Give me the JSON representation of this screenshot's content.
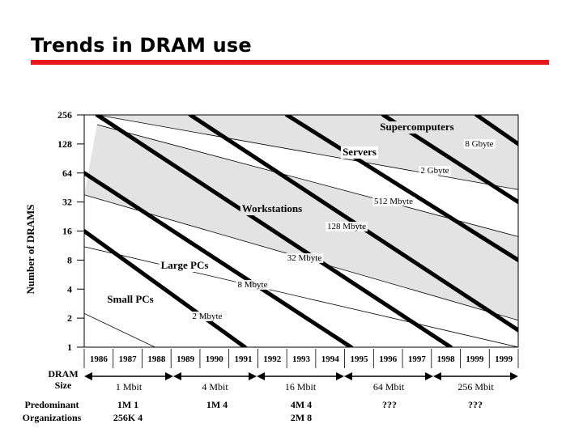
{
  "slide": {
    "title": "Trends in DRAM use"
  },
  "chart_data": {
    "type": "line",
    "ylabel": "Number of DRAMS",
    "y_scale": "log2",
    "y_ticks": [
      "256",
      "128",
      "64",
      "32",
      "16",
      "8",
      "4",
      "2",
      "1"
    ],
    "x_categories": [
      "1986",
      "1987",
      "1988",
      "1989",
      "1990",
      "1991",
      "1992",
      "1993",
      "1994",
      "1995",
      "1996",
      "1997",
      "1998",
      "1999",
      "1999"
    ],
    "memory_lines": [
      {
        "label": "2 Mbyte",
        "points": [
          [
            1986,
            16
          ],
          [
            1991,
            1
          ]
        ]
      },
      {
        "label": "8 Mbyte",
        "points": [
          [
            1986,
            64
          ],
          [
            1994.3,
            1
          ]
        ]
      },
      {
        "label": "32 Mbyte",
        "points": [
          [
            1986.4,
            256
          ],
          [
            1997.4,
            1
          ]
        ]
      },
      {
        "label": "128 Mbyte",
        "points": [
          [
            1989.3,
            256
          ],
          [
            1999.5,
            1.5
          ]
        ]
      },
      {
        "label": "512 Mbyte",
        "points": [
          [
            1992.3,
            256
          ],
          [
            1999.5,
            8
          ]
        ]
      },
      {
        "label": "2 Gbyte",
        "points": [
          [
            1995.3,
            256
          ],
          [
            1999.5,
            32
          ]
        ]
      },
      {
        "label": "8 Gbyte",
        "points": [
          [
            1998.2,
            256
          ],
          [
            1999.5,
            128
          ]
        ]
      }
    ],
    "market_bands": [
      {
        "label": "Supercomputers",
        "upper": [
          [
            1986.4,
            256
          ],
          [
            1999.5,
            256
          ]
        ],
        "lower": [
          [
            1986.4,
            256
          ],
          [
            1999.5,
            43
          ]
        ]
      },
      {
        "label": "Servers",
        "upper": [
          [
            1986.4,
            256
          ],
          [
            1999.5,
            43
          ]
        ],
        "lower": [
          [
            1986.4,
            203
          ],
          [
            1999.5,
            14
          ]
        ]
      },
      {
        "label": "Workstations",
        "upper": [
          [
            1986.4,
            203
          ],
          [
            1999.5,
            14
          ]
        ],
        "lower": [
          [
            1986,
            38
          ],
          [
            1999.5,
            1.9
          ]
        ]
      },
      {
        "label": "Large PCs",
        "upper": [
          [
            1986,
            38
          ],
          [
            1999.5,
            1.9
          ]
        ],
        "lower": [
          [
            1986,
            11
          ],
          [
            1999.5,
            1
          ]
        ]
      },
      {
        "label": "Small PCs",
        "upper": [
          [
            1986,
            11
          ],
          [
            1999.5,
            1
          ]
        ],
        "lower": [
          [
            1985.2,
            3
          ],
          [
            1988.2,
            1
          ]
        ]
      }
    ],
    "dram_sizes": {
      "row_label": "DRAM Size",
      "generations": [
        {
          "label": "1 Mbit",
          "years": [
            1986,
            1988.5
          ]
        },
        {
          "label": "4 Mbit",
          "years": [
            1988.5,
            1991.5
          ]
        },
        {
          "label": "16 Mbit",
          "years": [
            1991.5,
            1994.5
          ]
        },
        {
          "label": "64 Mbit",
          "years": [
            1994.5,
            1997.5
          ]
        },
        {
          "label": "256 Mbit",
          "years": [
            1997.5,
            1999.5
          ]
        }
      ]
    },
    "organizations": {
      "row_label_1": "Predominant",
      "row_label_2": "Organizations",
      "entries": [
        {
          "line1": "1M    1",
          "line2": "256K   4"
        },
        {
          "line1": "1M    4",
          "line2": ""
        },
        {
          "line1": "4M    4",
          "line2": "2M    8"
        },
        {
          "line1": "???",
          "line2": ""
        },
        {
          "line1": "???",
          "line2": ""
        }
      ]
    }
  }
}
